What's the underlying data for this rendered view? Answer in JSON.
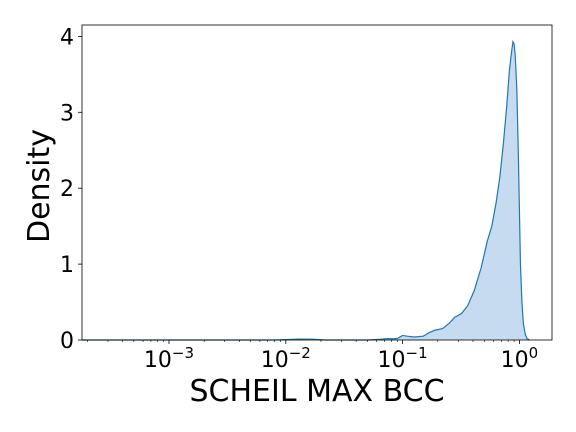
{
  "chart_data": {
    "type": "area",
    "title": "",
    "xlabel": "SCHEIL MAX BCC",
    "ylabel": "Density",
    "xscale": "log",
    "xlim": [
      0.00018,
      1.9
    ],
    "ylim": [
      0,
      4.15
    ],
    "grid": false,
    "legend": "none",
    "x_ticks": [
      {
        "value": 0.001,
        "base": "10",
        "exp": "−3"
      },
      {
        "value": 0.01,
        "base": "10",
        "exp": "−2"
      },
      {
        "value": 0.1,
        "base": "10",
        "exp": "−1"
      },
      {
        "value": 1,
        "base": "10",
        "exp": "0"
      }
    ],
    "y_ticks": [
      {
        "value": 0,
        "label": "0"
      },
      {
        "value": 1,
        "label": "1"
      },
      {
        "value": 2,
        "label": "2"
      },
      {
        "value": 3,
        "label": "3"
      },
      {
        "value": 4,
        "label": "4"
      }
    ],
    "series": [
      {
        "points": [
          [
            0.00018,
            0.0
          ],
          [
            0.003,
            0.0
          ],
          [
            0.008,
            0.0
          ],
          [
            0.013,
            0.012
          ],
          [
            0.017,
            0.01
          ],
          [
            0.022,
            0.0
          ],
          [
            0.05,
            0.0
          ],
          [
            0.065,
            0.01
          ],
          [
            0.075,
            0.02
          ],
          [
            0.082,
            0.015
          ],
          [
            0.09,
            0.02
          ],
          [
            0.1,
            0.06
          ],
          [
            0.11,
            0.05
          ],
          [
            0.125,
            0.04
          ],
          [
            0.15,
            0.05
          ],
          [
            0.17,
            0.1
          ],
          [
            0.19,
            0.13
          ],
          [
            0.22,
            0.15
          ],
          [
            0.25,
            0.22
          ],
          [
            0.28,
            0.3
          ],
          [
            0.32,
            0.35
          ],
          [
            0.36,
            0.45
          ],
          [
            0.41,
            0.65
          ],
          [
            0.47,
            0.95
          ],
          [
            0.53,
            1.3
          ],
          [
            0.58,
            1.5
          ],
          [
            0.63,
            1.8
          ],
          [
            0.68,
            2.15
          ],
          [
            0.73,
            2.6
          ],
          [
            0.78,
            3.1
          ],
          [
            0.82,
            3.55
          ],
          [
            0.86,
            3.82
          ],
          [
            0.88,
            3.93
          ],
          [
            0.9,
            3.9
          ],
          [
            0.92,
            3.75
          ],
          [
            0.95,
            3.3
          ],
          [
            0.98,
            2.4
          ],
          [
            1.0,
            1.7
          ],
          [
            1.02,
            1.0
          ],
          [
            1.05,
            0.5
          ],
          [
            1.08,
            0.22
          ],
          [
            1.12,
            0.08
          ],
          [
            1.16,
            0.02
          ],
          [
            1.22,
            0.0
          ]
        ]
      }
    ],
    "colors": {
      "line": "#1f77b4",
      "fill": "#c6dbef"
    }
  }
}
